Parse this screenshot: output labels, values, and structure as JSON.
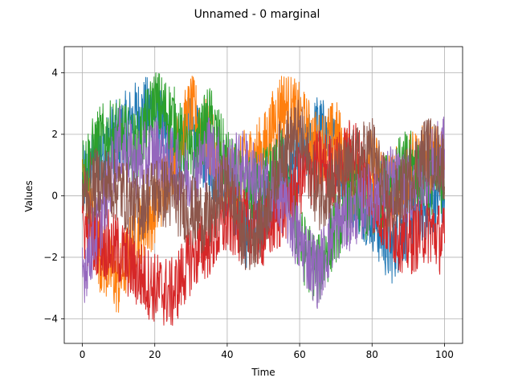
{
  "chart_data": {
    "type": "line",
    "title": "Unnamed - 0 marginal",
    "xlabel": "Time",
    "ylabel": "Values",
    "xlim": [
      -5,
      105
    ],
    "ylim": [
      -4.8,
      4.85
    ],
    "xticks": [
      0,
      20,
      40,
      60,
      80,
      100
    ],
    "yticks": [
      -4,
      -2,
      0,
      2,
      4
    ],
    "grid": true,
    "series": [
      {
        "color": "#1f77b4",
        "x": [
          0,
          5,
          10,
          15,
          20,
          25,
          30,
          35,
          40,
          45,
          50,
          55,
          60,
          65,
          70,
          75,
          80,
          85,
          90,
          95,
          100
        ],
        "y": [
          0.4,
          1.5,
          2.0,
          2.6,
          2.8,
          1.2,
          2.2,
          1.0,
          0.3,
          -1.2,
          -0.5,
          0.6,
          1.0,
          2.2,
          1.5,
          0.0,
          -0.6,
          -1.8,
          -0.8,
          -0.3,
          0.2
        ]
      },
      {
        "color": "#ff7f0e",
        "x": [
          0,
          5,
          10,
          15,
          20,
          25,
          30,
          35,
          40,
          45,
          50,
          55,
          60,
          65,
          70,
          75,
          80,
          85,
          90,
          95,
          100
        ],
        "y": [
          0.5,
          -2.0,
          -2.8,
          -1.2,
          -0.5,
          1.2,
          2.8,
          1.8,
          0.2,
          1.0,
          1.5,
          3.0,
          2.5,
          1.5,
          2.0,
          0.5,
          1.0,
          0.3,
          0.8,
          1.2,
          1.5
        ]
      },
      {
        "color": "#2ca02c",
        "x": [
          0,
          5,
          10,
          15,
          20,
          25,
          30,
          35,
          40,
          45,
          50,
          55,
          60,
          65,
          70,
          75,
          80,
          85,
          90,
          95,
          100
        ],
        "y": [
          0.8,
          1.8,
          2.0,
          1.5,
          3.0,
          2.5,
          1.0,
          2.5,
          1.0,
          0.0,
          0.5,
          1.0,
          -1.5,
          -2.5,
          -1.0,
          0.0,
          -0.5,
          0.5,
          1.0,
          0.5,
          0.6
        ]
      },
      {
        "color": "#d62728",
        "x": [
          0,
          5,
          10,
          15,
          20,
          25,
          30,
          35,
          40,
          45,
          50,
          55,
          60,
          65,
          70,
          75,
          80,
          85,
          90,
          95,
          100
        ],
        "y": [
          -1.0,
          -1.5,
          -1.8,
          -2.5,
          -3.0,
          -3.2,
          -2.0,
          -1.5,
          -0.8,
          -1.0,
          -1.2,
          -0.5,
          0.5,
          1.0,
          0.8,
          1.5,
          0.0,
          -1.0,
          -1.5,
          -1.0,
          -1.5
        ]
      },
      {
        "color": "#9467bd",
        "x": [
          0,
          5,
          10,
          15,
          20,
          25,
          30,
          35,
          40,
          45,
          50,
          55,
          60,
          65,
          70,
          75,
          80,
          85,
          90,
          95,
          100
        ],
        "y": [
          -2.5,
          -0.8,
          1.8,
          1.0,
          1.5,
          1.0,
          0.5,
          1.5,
          0.8,
          1.0,
          0.2,
          0.0,
          -1.5,
          -2.5,
          -1.0,
          -0.5,
          0.0,
          0.5,
          0.2,
          0.8,
          1.5
        ]
      },
      {
        "color": "#8c564b",
        "x": [
          0,
          5,
          10,
          15,
          20,
          25,
          30,
          35,
          40,
          45,
          50,
          55,
          60,
          65,
          70,
          75,
          80,
          85,
          90,
          95,
          100
        ],
        "y": [
          0.0,
          0.5,
          0.3,
          -0.5,
          0.2,
          0.0,
          -0.5,
          -0.8,
          0.5,
          -1.5,
          -0.8,
          1.5,
          2.0,
          0.0,
          0.5,
          1.0,
          1.5,
          -0.5,
          0.5,
          1.5,
          1.0
        ]
      }
    ]
  }
}
